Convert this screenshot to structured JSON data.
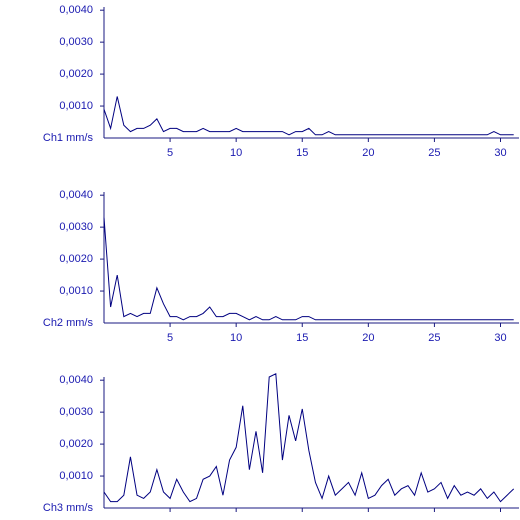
{
  "chart_data": [
    {
      "type": "line",
      "y_label": "Ch1 mm/s",
      "color": "#000080",
      "xlim": [
        0,
        31.4
      ],
      "ylim": [
        0,
        0.0041
      ],
      "xticks": [
        5,
        10,
        15,
        20,
        25,
        30
      ],
      "show_xtick_labels": true,
      "yticks": [
        {
          "value": 0.001,
          "label": "0,0010"
        },
        {
          "value": 0.002,
          "label": "0,0020"
        },
        {
          "value": 0.003,
          "label": "0,0030"
        },
        {
          "value": 0.004,
          "label": "0,0040"
        }
      ],
      "x": [
        0,
        0.5,
        1,
        1.5,
        2,
        2.5,
        3,
        3.5,
        4,
        4.5,
        5,
        5.5,
        6,
        6.5,
        7,
        7.5,
        8,
        8.5,
        9,
        9.5,
        10,
        10.5,
        11,
        11.5,
        12,
        12.5,
        13,
        13.5,
        14,
        14.5,
        15,
        15.5,
        16,
        16.5,
        17,
        17.5,
        18,
        18.5,
        19,
        19.5,
        20,
        20.5,
        21,
        21.5,
        22,
        22.5,
        23,
        23.5,
        24,
        24.5,
        25,
        25.5,
        26,
        26.5,
        27,
        27.5,
        28,
        28.5,
        29,
        29.5,
        30,
        30.5,
        31
      ],
      "values": [
        0.0009,
        0.0003,
        0.0013,
        0.0004,
        0.0002,
        0.0003,
        0.0003,
        0.0004,
        0.0006,
        0.0002,
        0.0003,
        0.0003,
        0.0002,
        0.0002,
        0.0002,
        0.0003,
        0.0002,
        0.0002,
        0.0002,
        0.0002,
        0.0003,
        0.0002,
        0.0002,
        0.0002,
        0.0002,
        0.0002,
        0.0002,
        0.0002,
        0.0001,
        0.0002,
        0.0002,
        0.0003,
        0.0001,
        0.0001,
        0.0002,
        0.0001,
        0.0001,
        0.0001,
        0.0001,
        0.0001,
        0.0001,
        0.0001,
        0.0001,
        0.0001,
        0.0001,
        0.0001,
        0.0001,
        0.0001,
        0.0001,
        0.0001,
        0.0001,
        0.0001,
        0.0001,
        0.0001,
        0.0001,
        0.0001,
        0.0001,
        0.0001,
        0.0001,
        0.0002,
        0.0001,
        0.0001,
        0.0001
      ]
    },
    {
      "type": "line",
      "y_label": "Ch2 mm/s",
      "color": "#000080",
      "xlim": [
        0,
        31.4
      ],
      "ylim": [
        0,
        0.0041
      ],
      "xticks": [
        5,
        10,
        15,
        20,
        25,
        30
      ],
      "show_xtick_labels": true,
      "yticks": [
        {
          "value": 0.001,
          "label": "0,0010"
        },
        {
          "value": 0.002,
          "label": "0,0020"
        },
        {
          "value": 0.003,
          "label": "0,0030"
        },
        {
          "value": 0.004,
          "label": "0,0040"
        }
      ],
      "x": [
        0,
        0.5,
        1,
        1.5,
        2,
        2.5,
        3,
        3.5,
        4,
        4.5,
        5,
        5.5,
        6,
        6.5,
        7,
        7.5,
        8,
        8.5,
        9,
        9.5,
        10,
        10.5,
        11,
        11.5,
        12,
        12.5,
        13,
        13.5,
        14,
        14.5,
        15,
        15.5,
        16,
        16.5,
        17,
        17.5,
        18,
        18.5,
        19,
        19.5,
        20,
        20.5,
        21,
        21.5,
        22,
        22.5,
        23,
        23.5,
        24,
        24.5,
        25,
        25.5,
        26,
        26.5,
        27,
        27.5,
        28,
        28.5,
        29,
        29.5,
        30,
        30.5,
        31
      ],
      "values": [
        0.0033,
        0.0005,
        0.0015,
        0.0002,
        0.0003,
        0.0002,
        0.0003,
        0.0003,
        0.0011,
        0.0006,
        0.0002,
        0.0002,
        0.0001,
        0.0002,
        0.0002,
        0.0003,
        0.0005,
        0.0002,
        0.0002,
        0.0003,
        0.0003,
        0.0002,
        0.0001,
        0.0002,
        0.0001,
        0.0001,
        0.0002,
        0.0001,
        0.0001,
        0.0001,
        0.0002,
        0.0002,
        0.0001,
        0.0001,
        0.0001,
        0.0001,
        0.0001,
        0.0001,
        0.0001,
        0.0001,
        0.0001,
        0.0001,
        0.0001,
        0.0001,
        0.0001,
        0.0001,
        0.0001,
        0.0001,
        0.0001,
        0.0001,
        0.0001,
        0.0001,
        0.0001,
        0.0001,
        0.0001,
        0.0001,
        0.0001,
        0.0001,
        0.0001,
        0.0001,
        0.0001,
        0.0001,
        0.0001
      ]
    },
    {
      "type": "line",
      "y_label": "Ch3 mm/s",
      "color": "#000080",
      "xlim": [
        0,
        31.4
      ],
      "ylim": [
        0,
        0.0041
      ],
      "xticks": [
        5,
        10,
        15,
        20,
        25,
        30
      ],
      "show_xtick_labels": false,
      "yticks": [
        {
          "value": 0.001,
          "label": "0,0010"
        },
        {
          "value": 0.002,
          "label": "0,0020"
        },
        {
          "value": 0.003,
          "label": "0,0030"
        },
        {
          "value": 0.004,
          "label": "0,0040"
        }
      ],
      "x": [
        0,
        0.5,
        1,
        1.5,
        2,
        2.5,
        3,
        3.5,
        4,
        4.5,
        5,
        5.5,
        6,
        6.5,
        7,
        7.5,
        8,
        8.5,
        9,
        9.5,
        10,
        10.5,
        11,
        11.5,
        12,
        12.5,
        13,
        13.5,
        14,
        14.5,
        15,
        15.5,
        16,
        16.5,
        17,
        17.5,
        18,
        18.5,
        19,
        19.5,
        20,
        20.5,
        21,
        21.5,
        22,
        22.5,
        23,
        23.5,
        24,
        24.5,
        25,
        25.5,
        26,
        26.5,
        27,
        27.5,
        28,
        28.5,
        29,
        29.5,
        30,
        30.5,
        31
      ],
      "values": [
        0.0005,
        0.0002,
        0.0002,
        0.0004,
        0.0016,
        0.0004,
        0.0003,
        0.0005,
        0.0012,
        0.0005,
        0.0003,
        0.0009,
        0.0005,
        0.0002,
        0.0003,
        0.0009,
        0.001,
        0.0013,
        0.0004,
        0.0015,
        0.0019,
        0.0032,
        0.0012,
        0.0024,
        0.0011,
        0.0041,
        0.0042,
        0.0015,
        0.0029,
        0.0021,
        0.0031,
        0.0018,
        0.0008,
        0.0003,
        0.001,
        0.0004,
        0.0006,
        0.0008,
        0.0004,
        0.0011,
        0.0003,
        0.0004,
        0.0007,
        0.0009,
        0.0004,
        0.0006,
        0.0007,
        0.0004,
        0.0011,
        0.0005,
        0.0006,
        0.0008,
        0.0003,
        0.0007,
        0.0004,
        0.0005,
        0.0004,
        0.0006,
        0.0003,
        0.0005,
        0.0002,
        0.0004,
        0.0006
      ]
    }
  ]
}
